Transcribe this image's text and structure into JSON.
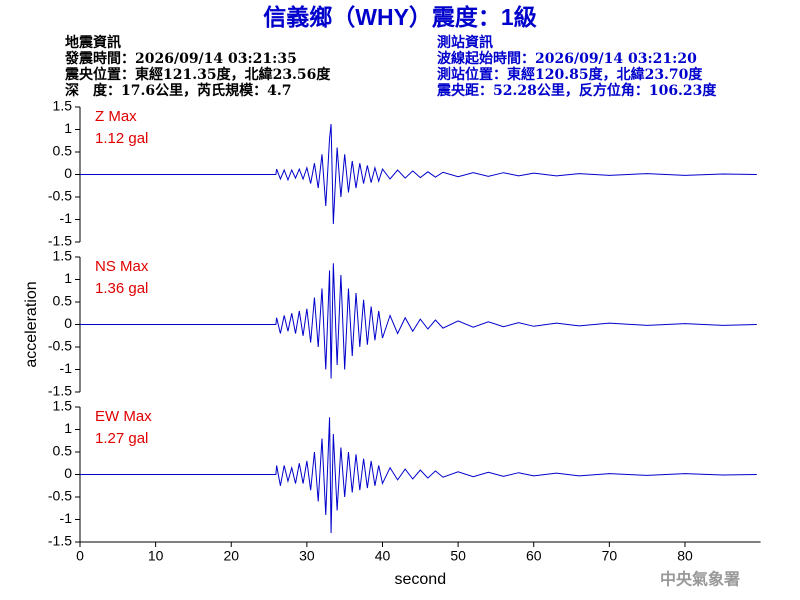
{
  "header": {
    "title": "信義鄉（WHY）震度：1級",
    "left": [
      "地震資訊",
      "發震時間：2026/09/14 03:21:35",
      "震央位置：東經121.35度，北緯23.56度",
      "深　度：17.6公里，芮氏規模：4.7"
    ],
    "right": [
      "測站資訊",
      "波線起始時間：2026/09/14 03:21:20",
      "測站位置：東經120.85度，北緯23.70度",
      "震央距：52.28公里，反方位角：106.23度"
    ],
    "agency": "中央氣象署"
  },
  "chart_data": [
    {
      "type": "line",
      "annotations": [
        "Z Max",
        "1.12 gal"
      ],
      "x": [
        0,
        25.9,
        26,
        26.5,
        27,
        27.5,
        28,
        28.5,
        29,
        29.5,
        30,
        30.5,
        31,
        31.5,
        32,
        32.5,
        33,
        33.2,
        33.5,
        34,
        34.5,
        35,
        35.5,
        36,
        36.5,
        37,
        37.5,
        38,
        38.5,
        39,
        39.5,
        40,
        41,
        42,
        43,
        44,
        45,
        46,
        47,
        48,
        50,
        52,
        54,
        56,
        58,
        60,
        63,
        66,
        70,
        75,
        80,
        85,
        89.5
      ],
      "series": [
        {
          "color": "#0000cc",
          "values": [
            0,
            0,
            0.12,
            -0.1,
            0.1,
            -0.12,
            0.1,
            -0.08,
            0.12,
            -0.1,
            0.15,
            -0.2,
            0.25,
            -0.3,
            0.45,
            -0.7,
            0.8,
            1.12,
            -1.1,
            0.6,
            -0.5,
            0.45,
            -0.4,
            0.3,
            -0.3,
            0.25,
            -0.2,
            0.2,
            -0.18,
            0.15,
            -0.15,
            0.12,
            -0.1,
            0.1,
            -0.08,
            0.08,
            -0.07,
            0.06,
            -0.06,
            0.05,
            -0.05,
            0.04,
            -0.04,
            0.04,
            -0.03,
            0.03,
            -0.03,
            0.02,
            -0.02,
            0.02,
            -0.02,
            0.01,
            0
          ]
        }
      ],
      "xlim": [
        0,
        90
      ],
      "ylim": [
        -1.5,
        1.5
      ],
      "yticks": [
        1.5,
        1,
        0.5,
        0,
        -0.5,
        -1,
        -1.5
      ]
    },
    {
      "type": "line",
      "annotations": [
        "NS Max",
        "1.36 gal"
      ],
      "ylabel": "acceleration",
      "x": [
        0,
        25.9,
        26,
        26.5,
        27,
        27.5,
        28,
        28.5,
        29,
        29.5,
        30,
        30.5,
        31,
        31.5,
        32,
        32.5,
        33,
        33.2,
        33.5,
        34,
        34.5,
        35,
        35.5,
        36,
        36.5,
        37,
        37.5,
        38,
        38.5,
        39,
        39.5,
        40,
        41,
        42,
        43,
        44,
        45,
        46,
        47,
        48,
        50,
        52,
        54,
        56,
        58,
        60,
        63,
        66,
        70,
        75,
        80,
        85,
        89.5
      ],
      "series": [
        {
          "color": "#0000cc",
          "values": [
            0,
            0,
            0.15,
            -0.2,
            0.2,
            -0.15,
            0.25,
            -0.2,
            0.3,
            -0.25,
            0.35,
            -0.4,
            0.6,
            -0.5,
            0.8,
            -1.0,
            1.2,
            -1.2,
            1.36,
            -0.9,
            1.1,
            -1.0,
            0.8,
            -0.7,
            0.7,
            -0.5,
            0.55,
            -0.45,
            0.4,
            -0.35,
            0.3,
            -0.3,
            0.2,
            -0.2,
            0.15,
            -0.15,
            0.12,
            -0.1,
            0.1,
            -0.08,
            0.08,
            -0.06,
            0.06,
            -0.05,
            0.04,
            -0.04,
            0.03,
            -0.03,
            0.03,
            -0.02,
            0.02,
            -0.02,
            0
          ]
        }
      ],
      "xlim": [
        0,
        90
      ],
      "ylim": [
        -1.5,
        1.5
      ],
      "yticks": [
        1.5,
        1,
        0.5,
        0,
        -0.5,
        -1,
        -1.5
      ]
    },
    {
      "type": "line",
      "annotations": [
        "EW Max",
        "1.27 gal"
      ],
      "xlabel": "second",
      "x": [
        0,
        25.9,
        26,
        26.5,
        27,
        27.5,
        28,
        28.5,
        29,
        29.5,
        30,
        30.5,
        31,
        31.5,
        32,
        32.5,
        33,
        33.2,
        33.5,
        34,
        34.5,
        35,
        35.5,
        36,
        36.5,
        37,
        37.5,
        38,
        38.5,
        39,
        39.5,
        40,
        41,
        42,
        43,
        44,
        45,
        46,
        47,
        48,
        50,
        52,
        54,
        56,
        58,
        60,
        63,
        66,
        70,
        75,
        80,
        85,
        89.5
      ],
      "series": [
        {
          "color": "#0000cc",
          "values": [
            0,
            0,
            0.2,
            -0.25,
            0.2,
            -0.15,
            0.15,
            -0.2,
            0.25,
            -0.2,
            0.3,
            -0.35,
            0.5,
            -0.6,
            0.8,
            -0.9,
            1.27,
            -1.3,
            0.9,
            -0.8,
            0.6,
            -0.5,
            0.5,
            -0.4,
            0.45,
            -0.35,
            0.35,
            -0.3,
            0.3,
            -0.25,
            0.2,
            -0.2,
            0.15,
            -0.12,
            0.12,
            -0.1,
            0.1,
            -0.08,
            0.08,
            -0.06,
            0.06,
            -0.05,
            0.05,
            -0.04,
            0.04,
            -0.03,
            0.03,
            -0.03,
            0.02,
            -0.02,
            0.02,
            -0.01,
            0
          ]
        }
      ],
      "xlim": [
        0,
        90
      ],
      "xticks": [
        0,
        10,
        20,
        30,
        40,
        50,
        60,
        70,
        80
      ],
      "ylim": [
        -1.5,
        1.5
      ],
      "yticks": [
        1.5,
        1,
        0.5,
        0,
        -0.5,
        -1,
        -1.5
      ]
    }
  ]
}
